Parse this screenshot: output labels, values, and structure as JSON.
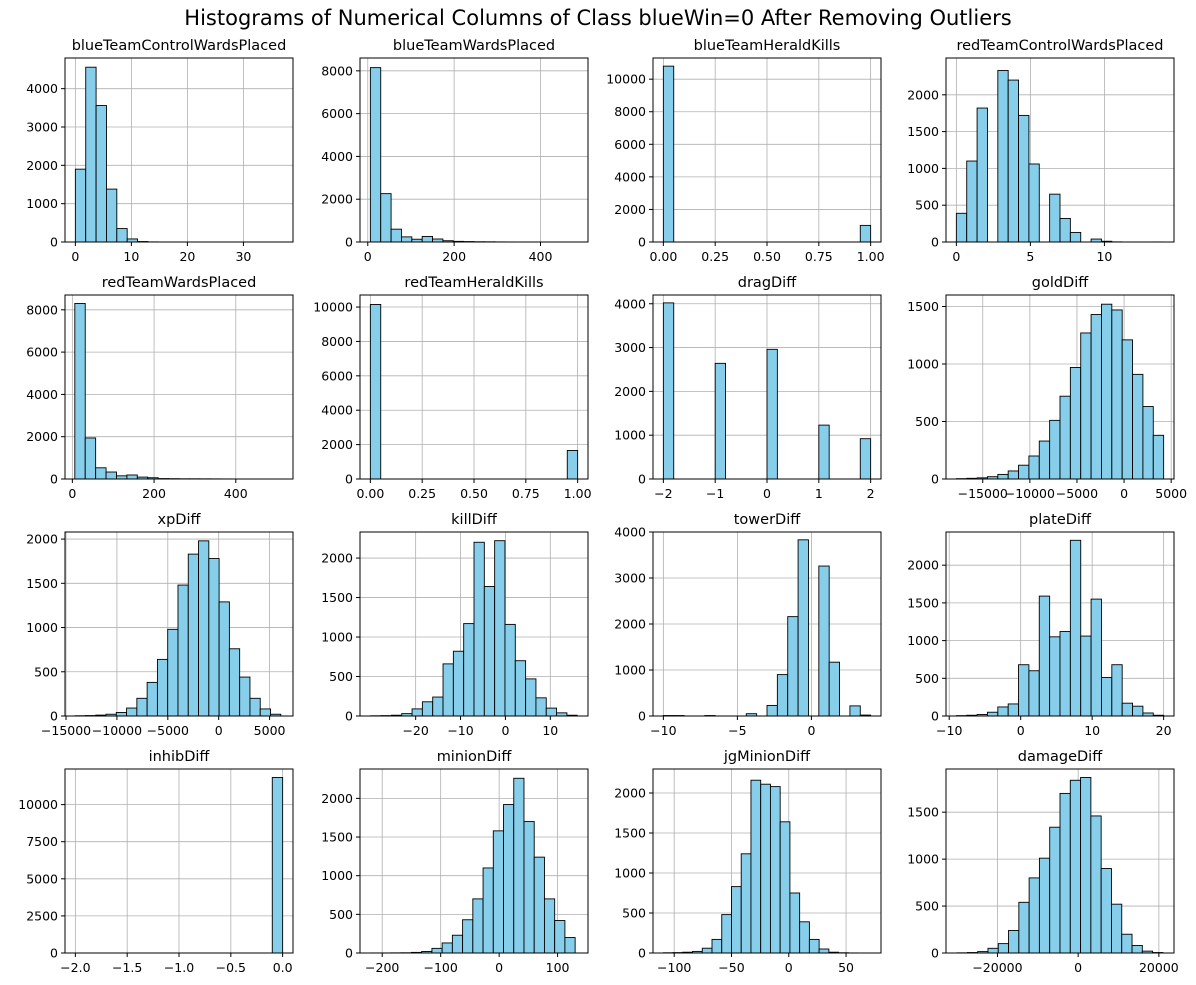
{
  "figure": {
    "title": "Histograms of Numerical Columns of Class blueWin=0 After Removing Outliers",
    "bar_color": "#87CEEB",
    "edge_color": "#000000",
    "grid_color": "#b0b0b0"
  },
  "chart_data": [
    {
      "type": "bar",
      "title": "blueTeamControlWardsPlaced",
      "xlim": [
        -1.85,
        38.85
      ],
      "ylim": [
        0,
        4800
      ],
      "xticks": [
        0,
        10,
        20,
        30
      ],
      "xtick_labels": [
        "0",
        "10",
        "20",
        "30"
      ],
      "yticks": [
        0,
        1000,
        2000,
        3000,
        4000
      ],
      "ytick_labels": [
        "0",
        "1000",
        "2000",
        "3000",
        "4000"
      ],
      "bin_start": 0,
      "bin_width": 1.85,
      "values": [
        1900,
        4560,
        3560,
        1380,
        350,
        80,
        12,
        3,
        1,
        0,
        0,
        0,
        0,
        0,
        0,
        0,
        0,
        0,
        0,
        1
      ]
    },
    {
      "type": "bar",
      "title": "blueTeamWardsPlaced",
      "xlim": [
        -18,
        510
      ],
      "ylim": [
        0,
        8600
      ],
      "xticks": [
        0,
        200,
        400
      ],
      "xtick_labels": [
        "0",
        "200",
        "400"
      ],
      "yticks": [
        0,
        2000,
        4000,
        6000,
        8000
      ],
      "ytick_labels": [
        "0",
        "2000",
        "4000",
        "6000",
        "8000"
      ],
      "bin_start": 6,
      "bin_width": 24,
      "values": [
        8150,
        2260,
        600,
        240,
        130,
        260,
        140,
        60,
        30,
        20,
        12,
        10,
        5,
        3,
        2,
        2,
        1,
        1,
        1,
        1
      ]
    },
    {
      "type": "bar",
      "title": "blueTeamHeraldKills",
      "xlim": [
        -0.05,
        1.05
      ],
      "ylim": [
        0,
        11300
      ],
      "xticks": [
        0,
        0.25,
        0.5,
        0.75,
        1
      ],
      "xtick_labels": [
        "0.00",
        "0.25",
        "0.50",
        "0.75",
        "1.00"
      ],
      "yticks": [
        0,
        2000,
        4000,
        6000,
        8000,
        10000
      ],
      "ytick_labels": [
        "0",
        "2000",
        "4000",
        "6000",
        "8000",
        "10000"
      ],
      "bin_start": 0,
      "bin_width": 0.05,
      "values": [
        10800,
        0,
        0,
        0,
        0,
        0,
        0,
        0,
        0,
        0,
        0,
        0,
        0,
        0,
        0,
        0,
        0,
        0,
        0,
        1020
      ]
    },
    {
      "type": "bar",
      "title": "redTeamControlWardsPlaced",
      "xlim": [
        -0.7,
        14.7
      ],
      "ylim": [
        0,
        2500
      ],
      "xticks": [
        0,
        5,
        10
      ],
      "xtick_labels": [
        "0",
        "5",
        "10"
      ],
      "yticks": [
        0,
        500,
        1000,
        1500,
        2000
      ],
      "ytick_labels": [
        "0",
        "500",
        "1000",
        "1500",
        "2000"
      ],
      "bin_start": 0,
      "bin_width": 0.7,
      "values": [
        390,
        1100,
        1820,
        0,
        2330,
        2200,
        1720,
        1060,
        0,
        650,
        320,
        130,
        0,
        40,
        10,
        2,
        0,
        0,
        0,
        1
      ]
    },
    {
      "type": "bar",
      "title": "redTeamWardsPlaced",
      "xlim": [
        -18,
        540
      ],
      "ylim": [
        0,
        8700
      ],
      "xticks": [
        0,
        200,
        400
      ],
      "xtick_labels": [
        "0",
        "200",
        "400"
      ],
      "yticks": [
        0,
        2000,
        4000,
        6000,
        8000
      ],
      "ytick_labels": [
        "0",
        "2000",
        "4000",
        "6000",
        "8000"
      ],
      "bin_start": 6,
      "bin_width": 25.5,
      "values": [
        8300,
        1940,
        530,
        330,
        150,
        190,
        90,
        60,
        20,
        15,
        10,
        10,
        8,
        6,
        4,
        2,
        1,
        1,
        1,
        1
      ]
    },
    {
      "type": "bar",
      "title": "redTeamHeraldKills",
      "xlim": [
        -0.05,
        1.05
      ],
      "ylim": [
        0,
        10700
      ],
      "xticks": [
        0,
        0.25,
        0.5,
        0.75,
        1
      ],
      "xtick_labels": [
        "0.00",
        "0.25",
        "0.50",
        "0.75",
        "1.00"
      ],
      "yticks": [
        0,
        2000,
        4000,
        6000,
        8000,
        10000
      ],
      "ytick_labels": [
        "0",
        "2000",
        "4000",
        "6000",
        "8000",
        "10000"
      ],
      "bin_start": 0,
      "bin_width": 0.05,
      "values": [
        10150,
        0,
        0,
        0,
        0,
        0,
        0,
        0,
        0,
        0,
        0,
        0,
        0,
        0,
        0,
        0,
        0,
        0,
        0,
        1660
      ]
    },
    {
      "type": "bar",
      "title": "dragDiff",
      "xlim": [
        -2.2,
        2.2
      ],
      "ylim": [
        0,
        4200
      ],
      "xticks": [
        -2,
        -1,
        0,
        1,
        2
      ],
      "xtick_labels": [
        "−2",
        "−1",
        "0",
        "1",
        "2"
      ],
      "yticks": [
        0,
        1000,
        2000,
        3000,
        4000
      ],
      "ytick_labels": [
        "0",
        "1000",
        "2000",
        "3000",
        "4000"
      ],
      "bin_start": -2,
      "bin_width": 0.2,
      "values": [
        4020,
        0,
        0,
        0,
        0,
        2640,
        0,
        0,
        0,
        0,
        2960,
        0,
        0,
        0,
        0,
        1230,
        0,
        0,
        0,
        920
      ]
    },
    {
      "type": "bar",
      "title": "goldDiff",
      "xlim": [
        -18900,
        5300
      ],
      "ylim": [
        0,
        1600
      ],
      "xticks": [
        -15000,
        -10000,
        -5000,
        0,
        5000
      ],
      "xtick_labels": [
        "−15000",
        "−10000",
        "−5000",
        "0",
        "5000"
      ],
      "yticks": [
        0,
        500,
        1000,
        1500
      ],
      "ytick_labels": [
        "0",
        "500",
        "1000",
        "1500"
      ],
      "bin_start": -17800,
      "bin_width": 1100,
      "values": [
        3,
        6,
        10,
        20,
        40,
        70,
        120,
        200,
        330,
        510,
        720,
        970,
        1270,
        1430,
        1520,
        1470,
        1210,
        910,
        630,
        380
      ]
    },
    {
      "type": "bar",
      "title": "xpDiff",
      "xlim": [
        -15100,
        7300
      ],
      "ylim": [
        0,
        2080
      ],
      "xticks": [
        -15000,
        -10000,
        -5000,
        0,
        5000
      ],
      "xtick_labels": [
        "−15000",
        "−10000",
        "−5000",
        "0",
        "5000"
      ],
      "yticks": [
        0,
        500,
        1000,
        1500,
        2000
      ],
      "ytick_labels": [
        "0",
        "500",
        "1000",
        "1500",
        "2000"
      ],
      "bin_start": -14100,
      "bin_width": 1010,
      "values": [
        3,
        5,
        10,
        20,
        40,
        90,
        200,
        380,
        640,
        980,
        1480,
        1830,
        1980,
        1780,
        1290,
        760,
        440,
        200,
        80,
        20
      ]
    },
    {
      "type": "bar",
      "title": "killDiff",
      "xlim": [
        -32.4,
        18.4
      ],
      "ylim": [
        0,
        2330
      ],
      "xticks": [
        -20,
        -10,
        0,
        10
      ],
      "xtick_labels": [
        "−20",
        "−10",
        "0",
        "10"
      ],
      "yticks": [
        0,
        500,
        1000,
        1500,
        2000
      ],
      "ytick_labels": [
        "0",
        "500",
        "1000",
        "1500",
        "2000"
      ],
      "bin_start": -30,
      "bin_width": 2.3,
      "values": [
        3,
        5,
        10,
        30,
        90,
        180,
        240,
        660,
        820,
        1170,
        2200,
        1640,
        2220,
        1160,
        700,
        470,
        230,
        100,
        40,
        10
      ]
    },
    {
      "type": "bar",
      "title": "towerDiff",
      "xlim": [
        -10.7,
        4.7
      ],
      "ylim": [
        0,
        4000
      ],
      "xticks": [
        -10,
        -5,
        0
      ],
      "xtick_labels": [
        "−10",
        "−5",
        "0"
      ],
      "yticks": [
        0,
        1000,
        2000,
        3000,
        4000
      ],
      "ytick_labels": [
        "0",
        "1000",
        "2000",
        "3000",
        "4000"
      ],
      "bin_start": -10,
      "bin_width": 0.7,
      "values": [
        10,
        10,
        0,
        0,
        10,
        0,
        0,
        0,
        50,
        0,
        230,
        900,
        2160,
        3830,
        0,
        3260,
        1170,
        0,
        220,
        20
      ]
    },
    {
      "type": "bar",
      "title": "plateDiff",
      "xlim": [
        -10.45,
        21.45
      ],
      "ylim": [
        0,
        2440
      ],
      "xticks": [
        -10,
        0,
        10,
        20
      ],
      "xtick_labels": [
        "−10",
        "0",
        "10",
        "20"
      ],
      "yticks": [
        0,
        500,
        1000,
        1500,
        2000
      ],
      "ytick_labels": [
        "0",
        "500",
        "1000",
        "1500",
        "2000"
      ],
      "bin_start": -9,
      "bin_width": 1.45,
      "values": [
        5,
        10,
        20,
        50,
        120,
        160,
        680,
        600,
        1590,
        1050,
        1120,
        2330,
        1060,
        1550,
        510,
        680,
        170,
        130,
        40,
        10
      ]
    },
    {
      "type": "bar",
      "title": "inhibDiff",
      "xlim": [
        -2.1,
        0.1
      ],
      "ylim": [
        0,
        12400
      ],
      "xticks": [
        -2,
        -1.5,
        -1,
        -0.5,
        0
      ],
      "xtick_labels": [
        "−2.0",
        "−1.5",
        "−1.0",
        "−0.5",
        "0.0"
      ],
      "yticks": [
        0,
        2500,
        5000,
        7500,
        10000
      ],
      "ytick_labels": [
        "0",
        "2500",
        "5000",
        "7500",
        "10000"
      ],
      "bin_start": -2,
      "bin_width": 0.1,
      "values": [
        2,
        0,
        0,
        0,
        0,
        0,
        0,
        0,
        0,
        0,
        0,
        0,
        0,
        0,
        0,
        0,
        0,
        0,
        0,
        11830
      ]
    },
    {
      "type": "bar",
      "title": "minionDiff",
      "xlim": [
        -238,
        152
      ],
      "ylim": [
        0,
        2380
      ],
      "xticks": [
        -200,
        -100,
        0,
        100
      ],
      "xtick_labels": [
        "−200",
        "−100",
        "0",
        "100"
      ],
      "yticks": [
        0,
        500,
        1000,
        1500,
        2000
      ],
      "ytick_labels": [
        "0",
        "500",
        "1000",
        "1500",
        "2000"
      ],
      "bin_start": -220,
      "bin_width": 17.5,
      "values": [
        1,
        1,
        2,
        3,
        8,
        20,
        60,
        130,
        230,
        430,
        700,
        1100,
        1580,
        1920,
        2260,
        1700,
        1240,
        700,
        420,
        200
      ]
    },
    {
      "type": "bar",
      "title": "jgMinionDiff",
      "xlim": [
        -118.5,
        80.5
      ],
      "ylim": [
        0,
        2300
      ],
      "xticks": [
        -100,
        -50,
        0,
        50
      ],
      "xtick_labels": [
        "−100",
        "−50",
        "0",
        "50"
      ],
      "yticks": [
        0,
        500,
        1000,
        1500,
        2000
      ],
      "ytick_labels": [
        "0",
        "500",
        "1000",
        "1500",
        "2000"
      ],
      "bin_start": -109.5,
      "bin_width": 8.5,
      "values": [
        3,
        5,
        10,
        20,
        60,
        170,
        480,
        830,
        1240,
        2160,
        2110,
        2080,
        1640,
        750,
        390,
        170,
        50,
        10,
        3,
        1
      ]
    },
    {
      "type": "bar",
      "title": "damageDiff",
      "xlim": [
        -32750,
        23750
      ],
      "ylim": [
        0,
        1960
      ],
      "xticks": [
        -20000,
        0,
        20000
      ],
      "xtick_labels": [
        "−20000",
        "0",
        "20000"
      ],
      "yticks": [
        0,
        500,
        1000,
        1500
      ],
      "ytick_labels": [
        "0",
        "500",
        "1000",
        "1500"
      ],
      "bin_start": -30000,
      "bin_width": 2550,
      "values": [
        2,
        5,
        15,
        50,
        100,
        240,
        540,
        800,
        1010,
        1340,
        1700,
        1840,
        1870,
        1460,
        900,
        520,
        200,
        80,
        20,
        5
      ]
    }
  ]
}
